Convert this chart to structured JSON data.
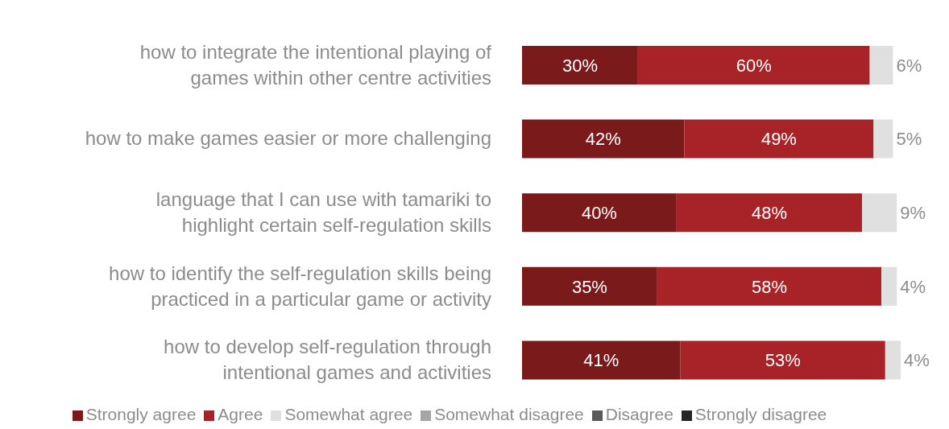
{
  "chart_data": {
    "type": "bar",
    "orientation": "horizontal",
    "stacked": true,
    "categories": [
      "how to integrate the intentional playing of games within other centre activities",
      "how to make games easier or more challenging",
      "language that I can use with tamariki to highlight certain self-regulation skills",
      "how to identify the self-regulation skills being practiced in a particular game or activity",
      "how to develop self-regulation through intentional games and activities"
    ],
    "series": [
      {
        "name": "Strongly agree",
        "color": "#7b1a1a",
        "values": [
          30,
          42,
          40,
          35,
          41
        ],
        "value_labels": [
          "30%",
          "42%",
          "40%",
          "35%",
          "41%"
        ]
      },
      {
        "name": "Agree",
        "color": "#a82327",
        "values": [
          60,
          49,
          48,
          58,
          53
        ],
        "value_labels": [
          "60%",
          "49%",
          "48%",
          "58%",
          "53%"
        ]
      },
      {
        "name": "Somewhat agree",
        "color": "#e0e0e0",
        "values": [
          6,
          5,
          9,
          4,
          4
        ],
        "value_labels": [
          "6%",
          "5%",
          "9%",
          "4%",
          "4%"
        ]
      },
      {
        "name": "Somewhat disagree",
        "color": "#a6a6a6",
        "values": [
          null,
          null,
          null,
          null,
          null
        ]
      },
      {
        "name": "Disagree",
        "color": "#595959",
        "values": [
          null,
          null,
          null,
          null,
          null
        ]
      },
      {
        "name": "Strongly disagree",
        "color": "#262626",
        "values": [
          null,
          null,
          null,
          null,
          null
        ]
      }
    ],
    "legend": "bottom"
  }
}
